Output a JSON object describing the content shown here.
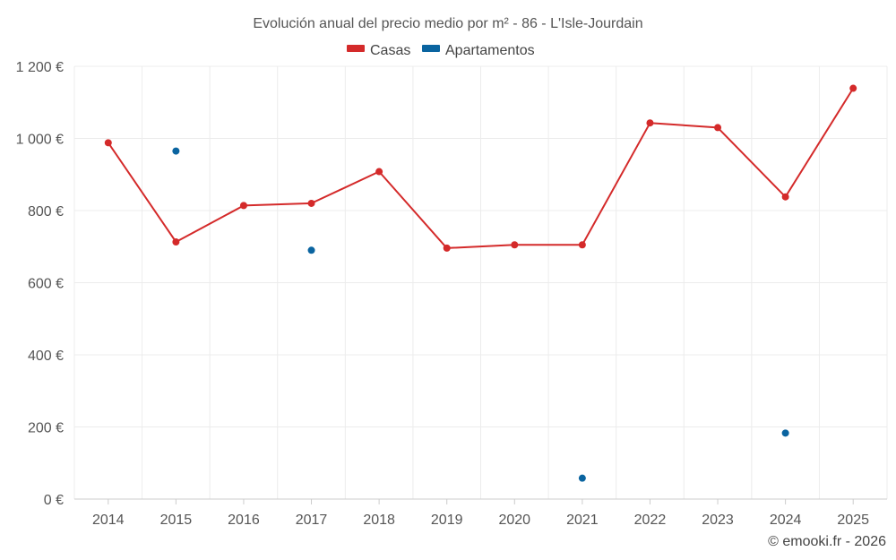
{
  "chart_data": {
    "type": "line",
    "title": "Evolución anual del precio medio por m² - 86 - L'Isle-Jourdain",
    "categories": [
      "2014",
      "2015",
      "2016",
      "2017",
      "2018",
      "2019",
      "2020",
      "2021",
      "2022",
      "2023",
      "2024",
      "2025"
    ],
    "series": [
      {
        "name": "Casas",
        "color": "#d42a2a",
        "style": "line-markers",
        "values": [
          988,
          713,
          814,
          820,
          908,
          696,
          705,
          705,
          1043,
          1030,
          838,
          1139
        ]
      },
      {
        "name": "Apartamentos",
        "color": "#0a64a0",
        "style": "markers",
        "values": [
          null,
          965,
          null,
          690,
          null,
          null,
          null,
          58,
          null,
          null,
          183,
          null
        ]
      }
    ],
    "ylim": [
      0,
      1200
    ],
    "yticks": [
      0,
      200,
      400,
      600,
      800,
      1000,
      1200
    ],
    "ytick_labels": [
      "0 €",
      "200 €",
      "400 €",
      "600 €",
      "800 €",
      "1 000 €",
      "1 200 €"
    ],
    "xlabel": "",
    "ylabel": "",
    "grid": true,
    "legend_position": "top-center"
  },
  "credit": "© emooki.fr - 2026"
}
